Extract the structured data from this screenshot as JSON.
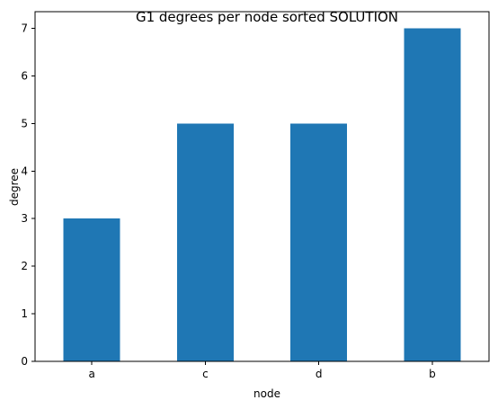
{
  "chart_data": {
    "type": "bar",
    "title": "G1 degrees per node sorted SOLUTION",
    "xlabel": "node",
    "ylabel": "degree",
    "categories": [
      "a",
      "c",
      "d",
      "b"
    ],
    "values": [
      3,
      5,
      5,
      7
    ],
    "ylim": [
      0,
      7.35
    ],
    "yticks": [
      0,
      1,
      2,
      3,
      4,
      5,
      6,
      7
    ],
    "grid": false,
    "bar_color": "#1f77b4"
  }
}
